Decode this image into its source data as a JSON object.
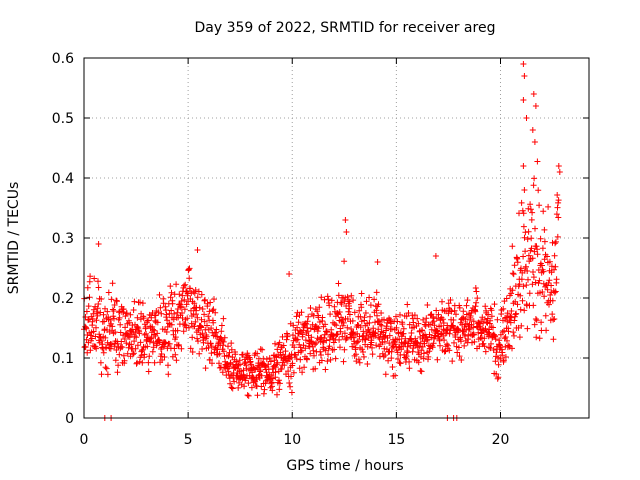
{
  "chart_data": {
    "type": "scatter",
    "title": "Day 359 of 2022, SRMTID for receiver areg",
    "xlabel": "GPS time / hours",
    "ylabel": "SRMTID / TECUs",
    "xlim": [
      0,
      24.25
    ],
    "ylim": [
      0,
      0.6
    ],
    "xticks": [
      0,
      5,
      10,
      15,
      20
    ],
    "xtick_labels": [
      "0",
      "5",
      "10",
      "15",
      "20"
    ],
    "yticks": [
      0,
      0.1,
      0.2,
      0.3,
      0.4,
      0.5,
      0.6
    ],
    "ytick_labels": [
      "0",
      "0.1",
      "0.2",
      "0.3",
      "0.4",
      "0.5",
      "0.6"
    ],
    "grid": true,
    "marker": "+",
    "series_color": "#ff0000",
    "zero_points": [
      1.0,
      1.3,
      17.45,
      17.75,
      17.9
    ],
    "trend": [
      {
        "x": 0.0,
        "y": 0.15,
        "spread": 0.06
      },
      {
        "x": 0.5,
        "y": 0.17,
        "spread": 0.06
      },
      {
        "x": 1.0,
        "y": 0.15,
        "spread": 0.06
      },
      {
        "x": 2.0,
        "y": 0.14,
        "spread": 0.06
      },
      {
        "x": 3.0,
        "y": 0.13,
        "spread": 0.05
      },
      {
        "x": 4.0,
        "y": 0.15,
        "spread": 0.06
      },
      {
        "x": 5.0,
        "y": 0.18,
        "spread": 0.06
      },
      {
        "x": 6.0,
        "y": 0.15,
        "spread": 0.05
      },
      {
        "x": 7.0,
        "y": 0.09,
        "spread": 0.04
      },
      {
        "x": 7.5,
        "y": 0.075,
        "spread": 0.03
      },
      {
        "x": 8.0,
        "y": 0.08,
        "spread": 0.03
      },
      {
        "x": 9.0,
        "y": 0.075,
        "spread": 0.03
      },
      {
        "x": 10.0,
        "y": 0.12,
        "spread": 0.05
      },
      {
        "x": 11.0,
        "y": 0.14,
        "spread": 0.05
      },
      {
        "x": 12.0,
        "y": 0.15,
        "spread": 0.06
      },
      {
        "x": 12.5,
        "y": 0.18,
        "spread": 0.07
      },
      {
        "x": 13.0,
        "y": 0.14,
        "spread": 0.05
      },
      {
        "x": 14.0,
        "y": 0.15,
        "spread": 0.05
      },
      {
        "x": 15.0,
        "y": 0.13,
        "spread": 0.05
      },
      {
        "x": 16.0,
        "y": 0.13,
        "spread": 0.04
      },
      {
        "x": 17.0,
        "y": 0.15,
        "spread": 0.05
      },
      {
        "x": 18.0,
        "y": 0.15,
        "spread": 0.04
      },
      {
        "x": 19.0,
        "y": 0.16,
        "spread": 0.04
      },
      {
        "x": 20.0,
        "y": 0.12,
        "spread": 0.05
      },
      {
        "x": 20.5,
        "y": 0.17,
        "spread": 0.07
      },
      {
        "x": 21.0,
        "y": 0.25,
        "spread": 0.1
      },
      {
        "x": 21.5,
        "y": 0.28,
        "spread": 0.12
      },
      {
        "x": 22.0,
        "y": 0.25,
        "spread": 0.1
      },
      {
        "x": 22.5,
        "y": 0.2,
        "spread": 0.08
      },
      {
        "x": 22.8,
        "y": 0.3,
        "spread": 0.1
      }
    ],
    "outliers": [
      {
        "x": 21.1,
        "y": 0.59
      },
      {
        "x": 21.15,
        "y": 0.57
      },
      {
        "x": 21.1,
        "y": 0.53
      },
      {
        "x": 21.25,
        "y": 0.5
      },
      {
        "x": 21.6,
        "y": 0.54
      },
      {
        "x": 21.7,
        "y": 0.52
      },
      {
        "x": 21.55,
        "y": 0.48
      },
      {
        "x": 21.65,
        "y": 0.46
      },
      {
        "x": 21.1,
        "y": 0.42
      },
      {
        "x": 21.15,
        "y": 0.38
      },
      {
        "x": 22.8,
        "y": 0.42
      },
      {
        "x": 22.85,
        "y": 0.41
      },
      {
        "x": 12.55,
        "y": 0.33
      },
      {
        "x": 12.6,
        "y": 0.31
      },
      {
        "x": 0.7,
        "y": 0.29
      },
      {
        "x": 5.45,
        "y": 0.28
      },
      {
        "x": 9.85,
        "y": 0.24
      },
      {
        "x": 14.1,
        "y": 0.26
      },
      {
        "x": 16.9,
        "y": 0.27
      }
    ]
  }
}
